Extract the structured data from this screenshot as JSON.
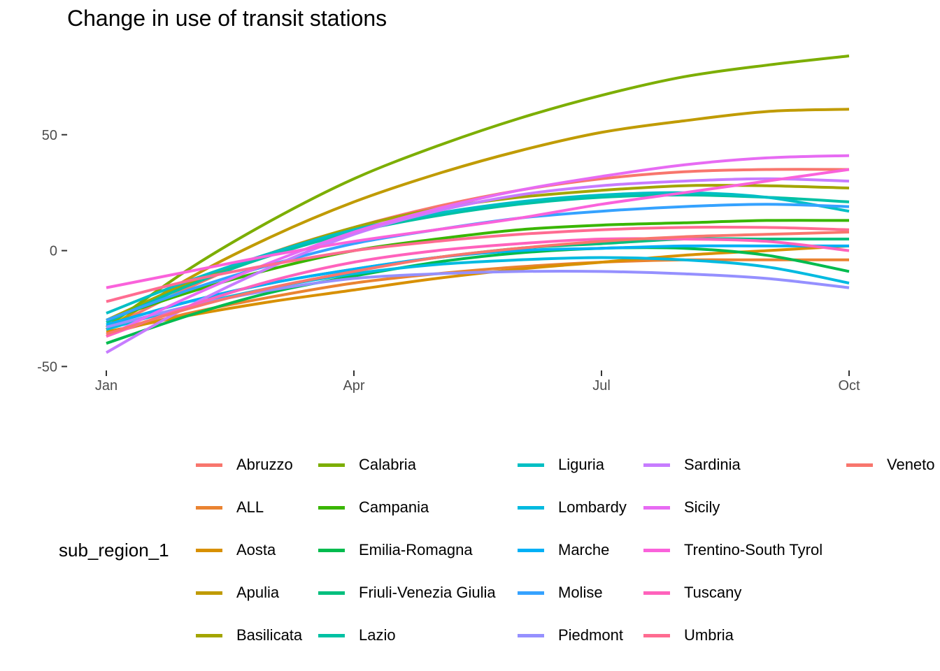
{
  "chart_data": {
    "type": "line",
    "title": "Change in use of transit stations",
    "xlabel": "",
    "ylabel": "",
    "legend_title": "sub_region_1",
    "legend_position": "bottom",
    "grid": false,
    "x": [
      "Jan 15",
      "Feb 15",
      "Mar 15",
      "Apr 15",
      "May 15",
      "Jun 15",
      "Jul 15",
      "Aug 15",
      "Sep 15",
      "Oct 15"
    ],
    "x_ticks": [
      {
        "label": "Jan",
        "value": "Jan 15"
      },
      {
        "label": "Apr",
        "value": "Apr 15"
      },
      {
        "label": "Jul",
        "value": "Jul 15"
      },
      {
        "label": "Oct",
        "value": "Oct 15"
      }
    ],
    "ylim": [
      -52,
      84
    ],
    "y_ticks": [
      -50,
      0,
      50
    ],
    "series": [
      {
        "name": "Abruzzo",
        "color": "#F8766D",
        "values": [
          -34,
          -16,
          -1,
          10,
          19,
          26,
          31,
          34,
          35,
          35
        ]
      },
      {
        "name": "ALL",
        "color": "#EA8331",
        "values": [
          -36,
          -27,
          -20,
          -14,
          -10,
          -7,
          -5,
          -4,
          -4,
          -4
        ]
      },
      {
        "name": "Aosta",
        "color": "#D89000",
        "values": [
          -35,
          -28,
          -22,
          -17,
          -12,
          -8,
          -5,
          -2,
          0,
          2
        ]
      },
      {
        "name": "Apulia",
        "color": "#C09B00",
        "values": [
          -34,
          -12,
          6,
          21,
          33,
          43,
          51,
          56,
          60,
          61
        ]
      },
      {
        "name": "Basilicata",
        "color": "#A3A500",
        "values": [
          -30,
          -14,
          -1,
          10,
          18,
          23,
          26,
          28,
          28,
          27
        ]
      },
      {
        "name": "Calabria",
        "color": "#7CAE00",
        "values": [
          -33,
          -8,
          13,
          31,
          45,
          57,
          67,
          75,
          80,
          84
        ]
      },
      {
        "name": "Campania",
        "color": "#39B600",
        "values": [
          -30,
          -18,
          -8,
          0,
          5,
          9,
          11,
          12,
          13,
          13
        ]
      },
      {
        "name": "Emilia-Romagna",
        "color": "#00BB4E",
        "values": [
          -40,
          -28,
          -18,
          -11,
          -5,
          -1,
          1,
          1,
          -2,
          -9
        ]
      },
      {
        "name": "Friuli-Venezia Giulia",
        "color": "#00BF7D",
        "values": [
          -32,
          -22,
          -14,
          -8,
          -3,
          1,
          3,
          5,
          5,
          5
        ]
      },
      {
        "name": "Lazio",
        "color": "#00C1A3",
        "values": [
          -31,
          -15,
          -2,
          8,
          15,
          20,
          23,
          24,
          23,
          21
        ]
      },
      {
        "name": "Liguria",
        "color": "#00BFC4",
        "values": [
          -27,
          -13,
          -1,
          9,
          16,
          21,
          24,
          25,
          23,
          17
        ]
      },
      {
        "name": "Lombardy",
        "color": "#00BAE0",
        "values": [
          -34,
          -24,
          -16,
          -10,
          -6,
          -4,
          -3,
          -4,
          -7,
          -14
        ]
      },
      {
        "name": "Marche",
        "color": "#00B0F6",
        "values": [
          -32,
          -22,
          -14,
          -8,
          -3,
          0,
          1,
          2,
          2,
          2
        ]
      },
      {
        "name": "Molise",
        "color": "#35A2FF",
        "values": [
          -30,
          -17,
          -6,
          3,
          9,
          14,
          17,
          19,
          20,
          19
        ]
      },
      {
        "name": "Piedmont",
        "color": "#9590FF",
        "values": [
          -33,
          -24,
          -17,
          -12,
          -10,
          -9,
          -9,
          -10,
          -12,
          -16
        ]
      },
      {
        "name": "Sardinia",
        "color": "#C77CFF",
        "values": [
          -44,
          -24,
          -7,
          7,
          17,
          24,
          28,
          30,
          31,
          30
        ]
      },
      {
        "name": "Sicily",
        "color": "#E76BF3",
        "values": [
          -37,
          -20,
          -5,
          8,
          18,
          26,
          32,
          37,
          40,
          41
        ]
      },
      {
        "name": "Trentino-South Tyrol",
        "color": "#FA62DB",
        "values": [
          -16,
          -9,
          -2,
          4,
          9,
          14,
          20,
          25,
          30,
          35
        ]
      },
      {
        "name": "Tuscany",
        "color": "#FF62BC",
        "values": [
          -37,
          -24,
          -13,
          -5,
          0,
          3,
          5,
          5,
          4,
          0
        ]
      },
      {
        "name": "Umbria",
        "color": "#FF6C91",
        "values": [
          -22,
          -13,
          -6,
          0,
          4,
          7,
          9,
          10,
          10,
          9
        ]
      },
      {
        "name": "Veneto",
        "color": "#F8766D",
        "values": [
          -36,
          -25,
          -16,
          -9,
          -3,
          1,
          4,
          6,
          7,
          8
        ]
      }
    ]
  }
}
